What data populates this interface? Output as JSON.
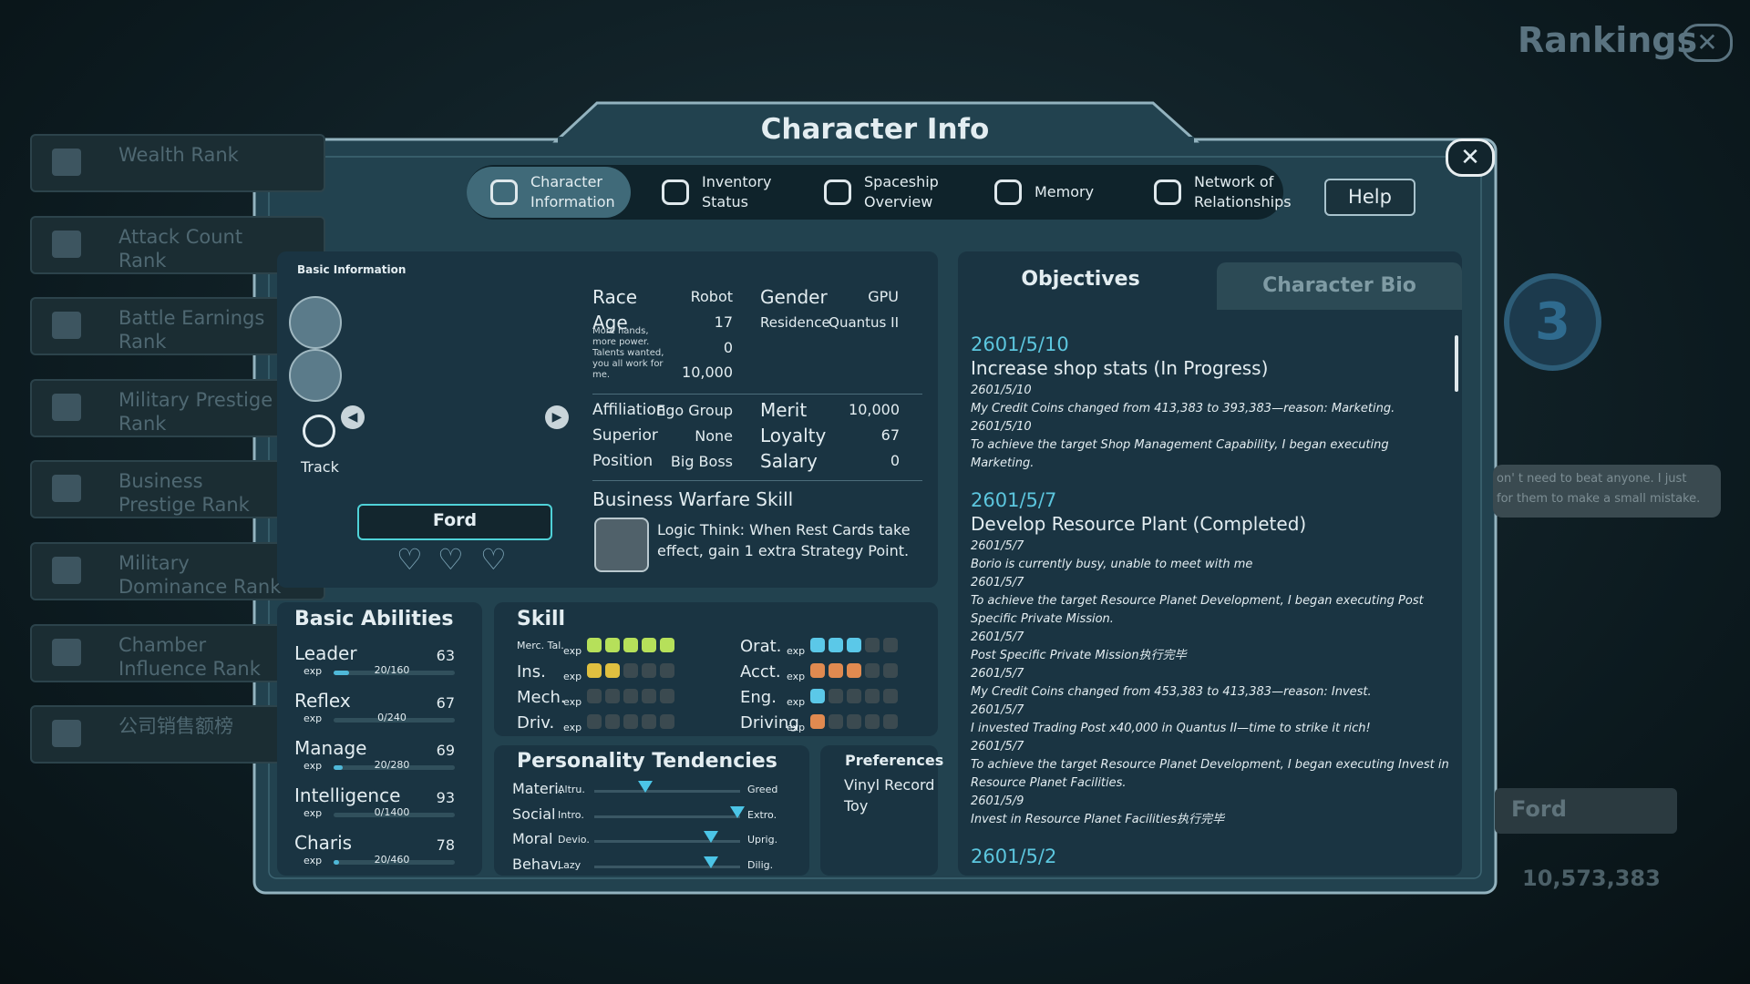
{
  "background": {
    "title": "Rankings",
    "rank_list": [
      "Wealth Rank",
      "Attack Count Rank",
      "Battle Earnings Rank",
      "Military Prestige Rank",
      "Business Prestige Rank",
      "Military Dominance Rank",
      "Chamber Influence Rank",
      "公司销售额榜"
    ],
    "rank_badge": "3",
    "quote": [
      "on' t need to beat anyone. I just",
      "for them to make a small mistake."
    ],
    "featured_name": "Ford",
    "featured_value": "10,573,383"
  },
  "dialog": {
    "title": "Character Info",
    "tabs": [
      "Character Information",
      "Inventory Status",
      "Spaceship Overview",
      "Memory",
      "Network of Relationships"
    ],
    "help": "Help"
  },
  "basic_info": {
    "heading": "Basic Information",
    "track": "Track",
    "name": "Ford",
    "fields_left": [
      {
        "label": "Race",
        "value": "Robot"
      },
      {
        "label": "Age",
        "value": 17
      }
    ],
    "fields_right": [
      {
        "label": "Gender",
        "value": "GPU"
      },
      {
        "label": "Residence",
        "value": "Quantus II"
      }
    ],
    "motto": "More hands, more power. Talents wanted, you all work for me.",
    "motto_values": [
      0,
      "10,000"
    ],
    "org_left": [
      {
        "label": "Affiliation",
        "value": "Ego Group"
      },
      {
        "label": "Superior",
        "value": "None"
      },
      {
        "label": "Position",
        "value": "Big Boss"
      }
    ],
    "org_right": [
      {
        "label": "Merit",
        "value": "10,000"
      },
      {
        "label": "Loyalty",
        "value": 67
      },
      {
        "label": "Salary",
        "value": 0
      }
    ],
    "skill_heading": "Business Warfare Skill",
    "skill_text": "Logic Think:  When Rest Cards take effect, gain 1 extra Strategy Point."
  },
  "abilities": {
    "heading": "Basic Abilities",
    "exp_label": "exp",
    "items": [
      {
        "name": "Leader",
        "value": 63,
        "exp": "20/160"
      },
      {
        "name": "Reflex",
        "value": 67,
        "exp": "0/240"
      },
      {
        "name": "Manage",
        "value": 69,
        "exp": "20/280"
      },
      {
        "name": "Intelligence",
        "value": 93,
        "exp": "0/1400"
      },
      {
        "name": "Charis",
        "value": 78,
        "exp": "20/460"
      }
    ]
  },
  "skills": {
    "heading": "Skill",
    "exp_label": "exp",
    "items": [
      {
        "name": "Merc. Tal.",
        "level": 5
      },
      {
        "name": "Orat.",
        "level": 3
      },
      {
        "name": "Ins.",
        "level": 2
      },
      {
        "name": "Acct.",
        "level": 3
      },
      {
        "name": "Mech.",
        "level": 0
      },
      {
        "name": "Eng.",
        "level": 1
      },
      {
        "name": "Driv.",
        "level": 0
      },
      {
        "name": "Driving",
        "level": 1
      }
    ]
  },
  "personality": {
    "heading": "Personality Tendencies",
    "traits": [
      {
        "name": "Materi.",
        "left": "Altru.",
        "right": "Greed",
        "value": 35
      },
      {
        "name": "Social",
        "left": "Intro.",
        "right": "Extro.",
        "value": 98
      },
      {
        "name": "Moral",
        "left": "Devio.",
        "right": "Uprig.",
        "value": 80
      },
      {
        "name": "Behav.",
        "left": "Lazy",
        "right": "Dilig.",
        "value": 80
      }
    ]
  },
  "preferences": {
    "heading": "Preferences",
    "items": [
      "Vinyl Record",
      "Toy"
    ]
  },
  "objectives": {
    "tabs": [
      "Objectives",
      "Character Bio"
    ],
    "entries": [
      {
        "date": "2601/5/10",
        "title": "Increase shop stats (In Progress)",
        "logs": [
          {
            "date": "2601/5/10",
            "text": "My Credit Coins changed from 413,383 to 393,383—reason: Marketing."
          },
          {
            "date": "2601/5/10",
            "text": "To achieve the target Shop Management Capability, I began executing Marketing."
          }
        ]
      },
      {
        "date": "2601/5/7",
        "title": "Develop Resource Plant (Completed)",
        "logs": [
          {
            "date": "2601/5/7",
            "text": "Borio is currently busy, unable to meet with me"
          },
          {
            "date": "2601/5/7",
            "text": "To achieve the target Resource Planet Development, I began executing Post Specific Private Mission."
          },
          {
            "date": "2601/5/7",
            "text": "Post Specific Private Mission执行完毕"
          },
          {
            "date": "2601/5/7",
            "text": "My Credit Coins changed from 453,383 to 413,383—reason: Invest."
          },
          {
            "date": "2601/5/7",
            "text": "I invested Trading Post x40,000 in Quantus II—time to strike it rich!"
          },
          {
            "date": "2601/5/7",
            "text": "To achieve the target Resource Planet Development, I began executing Invest in Resource Planet Facilities."
          },
          {
            "date": "2601/5/9",
            "text": "Invest in Resource Planet Facilities执行完毕"
          }
        ]
      },
      {
        "date": "2601/5/2",
        "logs": []
      }
    ]
  }
}
